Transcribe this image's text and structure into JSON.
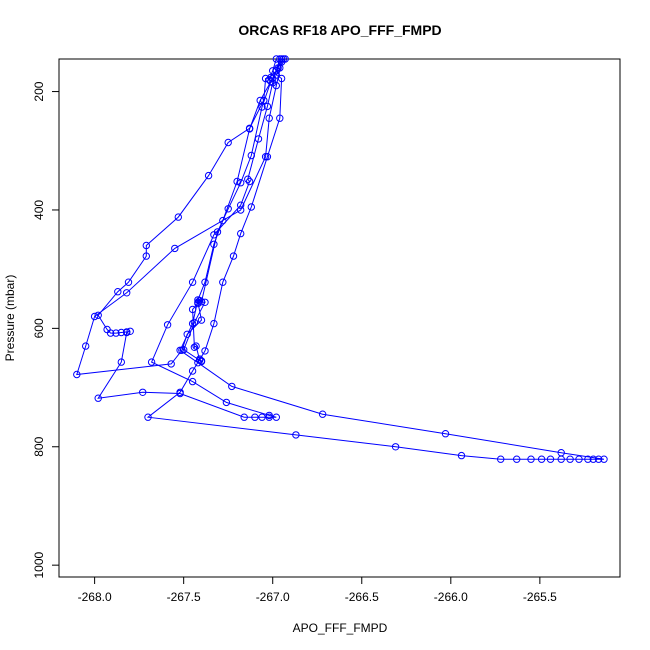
{
  "chart_data": {
    "type": "line",
    "title": "ORCAS RF18 APO_FFF_FMPD",
    "xlabel": "APO_FFF_FMPD",
    "ylabel": "Pressure (mbar)",
    "xlim": [
      -268.2,
      -265.05
    ],
    "ylim": [
      1020,
      145
    ],
    "y_reversed": true,
    "x_ticks": [
      -268.0,
      -267.5,
      -267.0,
      -266.5,
      -266.0,
      -265.5
    ],
    "x_tick_labels": [
      "-268.0",
      "-267.5",
      "-267.0",
      "-266.5",
      "-266.0",
      "-265.5"
    ],
    "y_ticks": [
      200,
      400,
      600,
      800,
      1000
    ],
    "y_tick_labels": [
      "200",
      "400",
      "600",
      "800",
      "1000"
    ],
    "grid": false,
    "color": "#0000ff",
    "markers": "open-circle",
    "series": [
      {
        "points": [
          [
            -266.93,
            145
          ],
          [
            -266.96,
            160
          ],
          [
            -266.98,
            172
          ],
          [
            -266.95,
            178
          ],
          [
            -266.96,
            245
          ],
          [
            -267.03,
            310
          ],
          [
            -267.12,
            395
          ],
          [
            -267.18,
            440
          ],
          [
            -267.22,
            478
          ],
          [
            -267.28,
            522
          ],
          [
            -267.33,
            592
          ],
          [
            -267.38,
            638
          ],
          [
            -267.45,
            672
          ],
          [
            -267.52,
            708
          ],
          [
            -267.7,
            750
          ],
          [
            -266.87,
            780
          ],
          [
            -266.31,
            800
          ],
          [
            -265.94,
            815
          ],
          [
            -265.72,
            821
          ],
          [
            -265.63,
            821
          ],
          [
            -265.55,
            821
          ],
          [
            -265.49,
            821
          ],
          [
            -265.44,
            821
          ],
          [
            -265.38,
            821
          ],
          [
            -265.33,
            821
          ],
          [
            -265.28,
            821
          ],
          [
            -265.23,
            821
          ],
          [
            -265.2,
            821
          ],
          [
            -265.17,
            821
          ],
          [
            -265.14,
            821
          ],
          [
            -265.38,
            810
          ],
          [
            -266.03,
            778
          ],
          [
            -266.72,
            745
          ],
          [
            -267.23,
            698
          ],
          [
            -267.42,
            658
          ],
          [
            -267.52,
            637
          ],
          [
            -267.45,
            592
          ],
          [
            -267.42,
            552
          ],
          [
            -267.38,
            522
          ],
          [
            -267.33,
            458
          ],
          [
            -267.28,
            418
          ],
          [
            -267.2,
            352
          ],
          [
            -267.13,
            263
          ],
          [
            -267.07,
            215
          ],
          [
            -267.0,
            178
          ],
          [
            -266.97,
            160
          ],
          [
            -266.94,
            145
          ]
        ]
      },
      {
        "points": [
          [
            -266.98,
            145
          ],
          [
            -267.0,
            165
          ],
          [
            -267.02,
            180
          ],
          [
            -267.01,
            176
          ],
          [
            -267.04,
            178
          ],
          [
            -267.05,
            215
          ],
          [
            -267.13,
            262
          ],
          [
            -267.25,
            286
          ],
          [
            -267.36,
            342
          ],
          [
            -267.53,
            412
          ],
          [
            -267.71,
            460
          ],
          [
            -267.71,
            478
          ],
          [
            -267.81,
            522
          ],
          [
            -267.87,
            538
          ],
          [
            -267.98,
            578
          ],
          [
            -267.93,
            602
          ],
          [
            -267.91,
            608
          ],
          [
            -267.88,
            608
          ],
          [
            -267.85,
            607
          ],
          [
            -267.82,
            606
          ],
          [
            -267.8,
            605
          ],
          [
            -267.82,
            607
          ],
          [
            -267.85,
            657
          ],
          [
            -267.98,
            718
          ],
          [
            -267.73,
            708
          ],
          [
            -267.52,
            710
          ],
          [
            -267.16,
            750
          ],
          [
            -267.1,
            750
          ],
          [
            -267.06,
            750
          ],
          [
            -267.02,
            750
          ],
          [
            -266.98,
            750
          ],
          [
            -267.02,
            747
          ],
          [
            -267.26,
            725
          ],
          [
            -267.45,
            690
          ],
          [
            -267.68,
            657
          ],
          [
            -267.59,
            594
          ],
          [
            -267.45,
            522
          ],
          [
            -267.33,
            442
          ],
          [
            -267.18,
            392
          ],
          [
            -267.13,
            352
          ],
          [
            -267.14,
            348
          ],
          [
            -267.08,
            280
          ],
          [
            -267.03,
            225
          ],
          [
            -267.0,
            185
          ],
          [
            -266.98,
            165
          ],
          [
            -266.95,
            145
          ]
        ]
      },
      {
        "points": [
          [
            -266.96,
            145
          ],
          [
            -266.98,
            165
          ],
          [
            -267.01,
            183
          ],
          [
            -267.06,
            226
          ],
          [
            -267.12,
            308
          ],
          [
            -267.18,
            354
          ],
          [
            -267.25,
            398
          ],
          [
            -267.31,
            437
          ],
          [
            -267.4,
            555
          ],
          [
            -267.41,
            553
          ],
          [
            -267.42,
            558
          ],
          [
            -267.45,
            568
          ],
          [
            -267.44,
            632
          ],
          [
            -267.43,
            630
          ],
          [
            -267.41,
            654
          ],
          [
            -267.4,
            655
          ],
          [
            -267.41,
            652
          ],
          [
            -267.4,
            656
          ],
          [
            -267.5,
            636
          ],
          [
            -267.44,
            590
          ],
          [
            -267.38,
            556
          ],
          [
            -267.42,
            556
          ],
          [
            -267.4,
            586
          ],
          [
            -267.48,
            610
          ],
          [
            -267.51,
            637
          ],
          [
            -267.57,
            660
          ],
          [
            -268.1,
            678
          ],
          [
            -268.05,
            630
          ],
          [
            -268.0,
            580
          ],
          [
            -267.82,
            540
          ],
          [
            -267.55,
            465
          ],
          [
            -267.18,
            400
          ],
          [
            -267.04,
            310
          ],
          [
            -267.02,
            245
          ],
          [
            -266.98,
            190
          ],
          [
            -266.95,
            150
          ]
        ]
      }
    ]
  }
}
